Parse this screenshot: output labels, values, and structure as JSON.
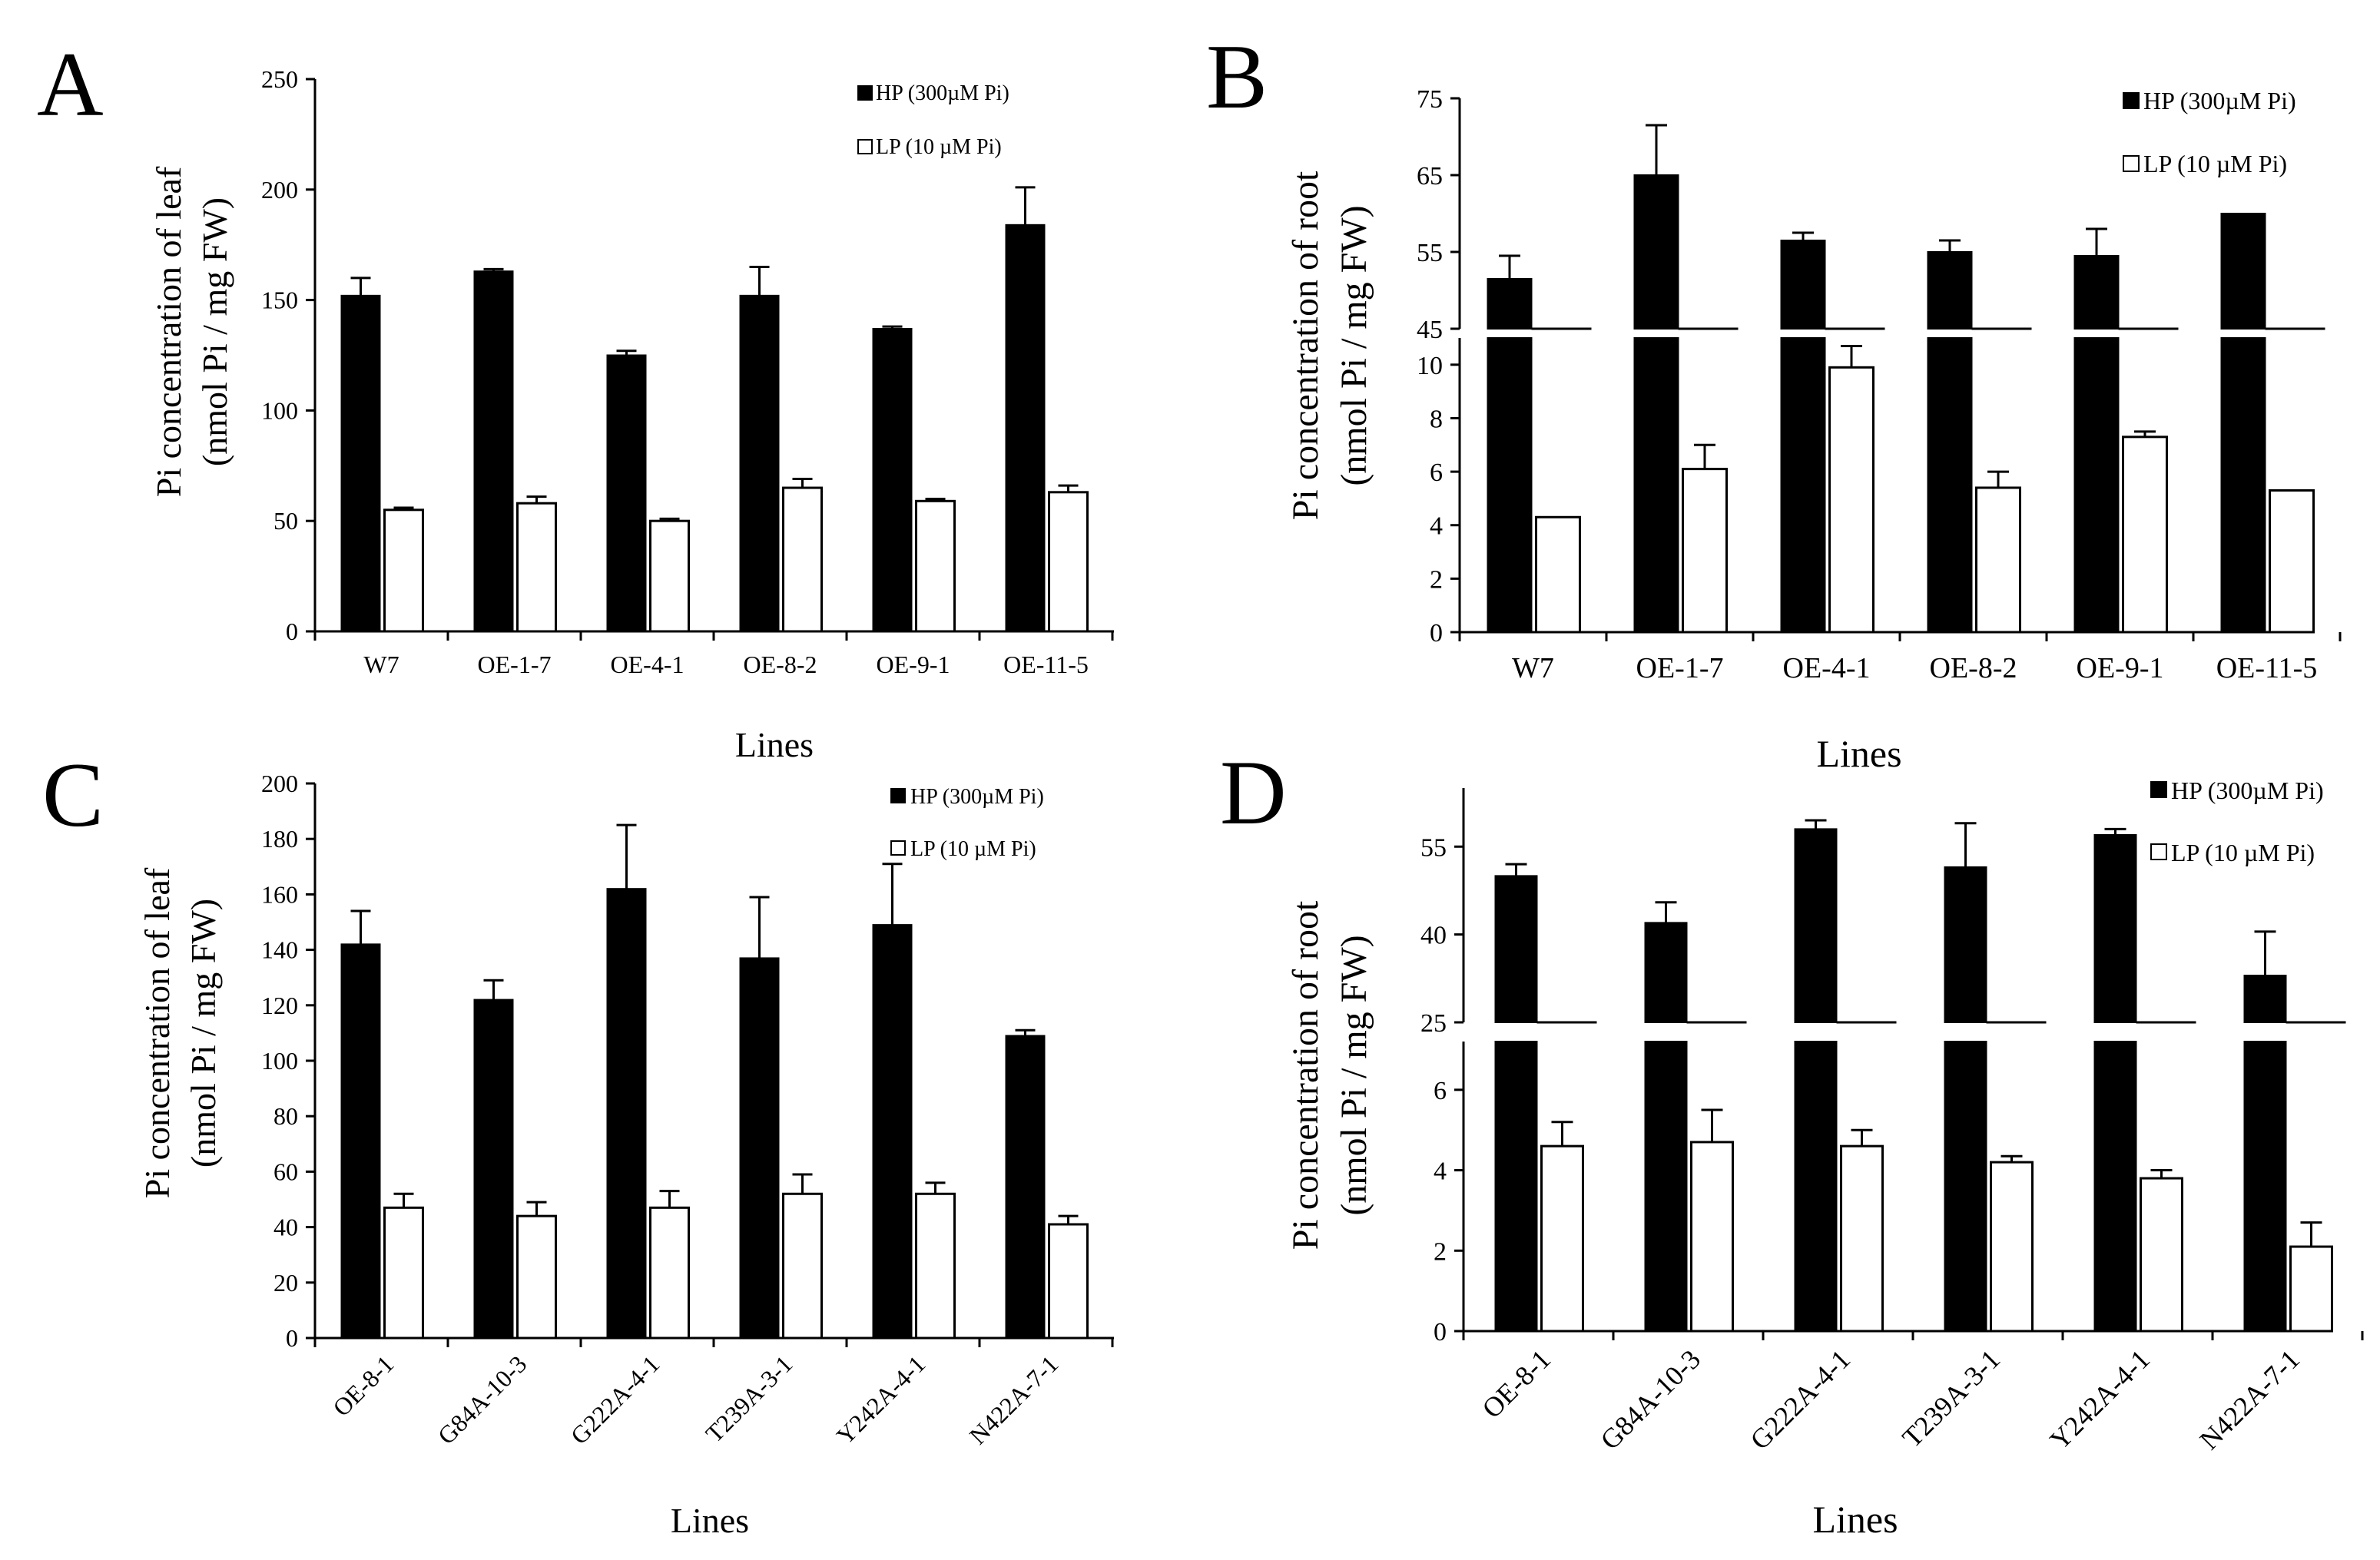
{
  "colors": {
    "hp": "#000000",
    "lp": "#ffffff",
    "axis": "#000000"
  },
  "chart_data": [
    {
      "panel_label": "A",
      "type": "bar",
      "ylabel_line1": "Pi concentration of leaf",
      "ylabel_line2": "(nmol Pi / mg FW)",
      "xlabel": "Lines",
      "categories": [
        "W7",
        "OE-1-7",
        "OE-4-1",
        "OE-8-2",
        "OE-9-1",
        "OE-11-5"
      ],
      "ylim": [
        0,
        250
      ],
      "yticks": [
        0,
        50,
        100,
        150,
        200,
        250
      ],
      "series": [
        {
          "name": "HP (300µM Pi)",
          "values": [
            152,
            163,
            125,
            152,
            137,
            184
          ],
          "errors": [
            8,
            1,
            2,
            13,
            1,
            17
          ]
        },
        {
          "name": "LP (10 µM Pi)",
          "values": [
            55,
            58,
            50,
            65,
            59,
            63
          ],
          "errors": [
            1,
            3,
            1,
            4,
            1,
            3
          ]
        }
      ]
    },
    {
      "panel_label": "B",
      "type": "bar",
      "broken_axis": true,
      "ylabel_line1": "Pi concentration of root",
      "ylabel_line2": "(nmol Pi / mg FW)",
      "xlabel": "Lines",
      "categories": [
        "W7",
        "OE-1-7",
        "OE-4-1",
        "OE-8-2",
        "OE-9-1",
        "OE-11-5"
      ],
      "ylim_lower": [
        0,
        11
      ],
      "ylim_upper": [
        45,
        75
      ],
      "yticks_lower": [
        0,
        2,
        4,
        6,
        8,
        10
      ],
      "yticks_upper": [
        45,
        55,
        65,
        75
      ],
      "series": [
        {
          "name": "HP (300µM Pi)",
          "values": [
            51.5,
            65,
            56.5,
            55,
            54.5,
            60
          ],
          "errors": [
            3,
            6.5,
            1,
            1.5,
            3.5,
            0
          ]
        },
        {
          "name": "LP (10 µM Pi)",
          "values": [
            4.3,
            6.1,
            9.9,
            5.4,
            7.3,
            5.3
          ],
          "errors": [
            0,
            0.9,
            0.8,
            0.6,
            0.2,
            0
          ]
        }
      ]
    },
    {
      "panel_label": "C",
      "type": "bar",
      "ylabel_line1": "Pi concentration of leaf",
      "ylabel_line2": "(nmol Pi / mg FW)",
      "xlabel": "Lines",
      "categories": [
        "OE-8-1",
        "G84A-10-3",
        "G222A-4-1",
        "T239A-3-1",
        "Y242A-4-1",
        "N422A-7-1"
      ],
      "ylim": [
        0,
        200
      ],
      "yticks": [
        0,
        20,
        40,
        60,
        80,
        100,
        120,
        140,
        160,
        180,
        200
      ],
      "series": [
        {
          "name": "HP (300µM Pi)",
          "values": [
            142,
            122,
            162,
            137,
            149,
            109
          ],
          "errors": [
            12,
            7,
            23,
            22,
            22,
            2
          ]
        },
        {
          "name": "LP (10 µM Pi)",
          "values": [
            47,
            44,
            47,
            52,
            52,
            41
          ],
          "errors": [
            5,
            5,
            6,
            7,
            4,
            3
          ]
        }
      ]
    },
    {
      "panel_label": "D",
      "type": "bar",
      "broken_axis": true,
      "ylabel_line1": "Pi concentration of root",
      "ylabel_line2": "(nmol Pi / mg FW)",
      "xlabel": "Lines",
      "categories": [
        "OE-8-1",
        "G84A-10-3",
        "G222A-4-1",
        "T239A-3-1",
        "Y242A-4-1",
        "N422A-7-1"
      ],
      "ylim_lower": [
        0,
        7.2
      ],
      "ylim_upper": [
        25,
        65
      ],
      "yticks_lower": [
        0,
        2,
        4,
        6
      ],
      "yticks_upper": [
        25,
        40,
        55
      ],
      "series": [
        {
          "name": "HP (300µM Pi)",
          "values": [
            50,
            42,
            58,
            51.5,
            57,
            33
          ],
          "errors": [
            2,
            3.5,
            1.5,
            7.5,
            1,
            7.5
          ]
        },
        {
          "name": "LP (10 µM Pi)",
          "values": [
            4.6,
            4.7,
            4.6,
            4.2,
            3.8,
            2.1
          ],
          "errors": [
            0.6,
            0.8,
            0.4,
            0.15,
            0.2,
            0.6
          ]
        }
      ]
    }
  ]
}
